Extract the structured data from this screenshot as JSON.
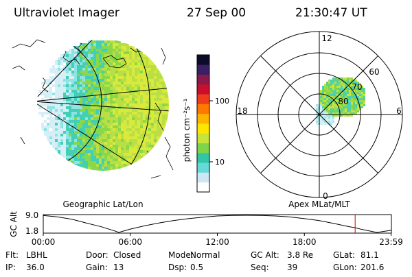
{
  "header": {
    "instrument": "Ultraviolet Imager",
    "date": "27 Sep 00",
    "time": "21:30:47 UT"
  },
  "panels": {
    "left_label": "Geographic Lat/Lon",
    "right_label": "Apex MLat/MLT"
  },
  "colorbar": {
    "label": "photon cm⁻²s⁻¹",
    "scale": "log",
    "colors": [
      "#ffffff",
      "#cfe6f3",
      "#66d9d9",
      "#31c7a6",
      "#7fd54a",
      "#c8e43a",
      "#ffe600",
      "#ffb400",
      "#ff7800",
      "#f03c1e",
      "#c8102e",
      "#8a1a4a",
      "#3b1f63",
      "#0c0c2a"
    ],
    "ticks": [
      {
        "label": "10",
        "value": 10
      },
      {
        "label": "100",
        "value": 100
      }
    ]
  },
  "polar_plot": {
    "mlt_labels": {
      "top": "12",
      "bottom": "0",
      "left": "18",
      "right": "6"
    },
    "mlat_labels": [
      "80",
      "70",
      "60"
    ]
  },
  "timeline": {
    "ylabel": "GC Alt",
    "ytick_top": "9.0",
    "ytick_bottom": "1.8",
    "xticks": [
      "00:00",
      "06:00",
      "12:00",
      "18:00",
      "23:59"
    ],
    "current_marker_color": "#cc0000"
  },
  "footer": {
    "row1": [
      {
        "label": "Flt:",
        "value": "LBHL"
      },
      {
        "label": "Door:",
        "value": "Closed"
      },
      {
        "label": "Mode:",
        "value": "Normal"
      },
      {
        "label": "GC Alt:",
        "value": "3.8 Re"
      },
      {
        "label": "GLat:",
        "value": "81.1"
      }
    ],
    "row2": [
      {
        "label": "IP:",
        "value": "36.0"
      },
      {
        "label": "Gain:",
        "value": "13"
      },
      {
        "label": "Dsp:",
        "value": "0.5"
      },
      {
        "label": "Seq:",
        "value": "39"
      },
      {
        "label": "GLon:",
        "value": "201.6"
      }
    ]
  },
  "chart_data": [
    {
      "type": "heatmap",
      "title": "Ultraviolet Imager",
      "projection": "Geographic Lat/Lon",
      "colorbar_label": "photon cm⁻²s⁻¹",
      "colorbar_scale": "log",
      "colorbar_ticks": [
        10,
        100
      ]
    },
    {
      "type": "heatmap",
      "projection": "Apex MLat/MLT",
      "mlt_ticks": [
        "12",
        "6",
        "0",
        "18"
      ],
      "mlat_rings": [
        80,
        70,
        60
      ]
    },
    {
      "type": "line",
      "ylabel": "GC Alt",
      "yticks": [
        1.8,
        9.0
      ],
      "ylim": [
        1.8,
        9.0
      ],
      "xticks": [
        "00:00",
        "06:00",
        "12:00",
        "18:00",
        "23:59"
      ],
      "x": [
        0,
        1,
        2,
        3,
        4,
        5,
        5.2,
        6,
        7,
        8,
        9,
        10,
        11,
        12,
        13,
        14,
        15,
        16,
        17,
        18,
        19,
        20,
        21,
        21.5,
        22,
        23,
        23.98
      ],
      "y": [
        8.9,
        8.3,
        7.3,
        5.7,
        4.2,
        2.3,
        1.8,
        3.2,
        4.6,
        5.8,
        6.8,
        7.6,
        8.2,
        8.7,
        8.95,
        9.0,
        8.95,
        8.7,
        8.3,
        7.6,
        6.8,
        5.6,
        4.3,
        3.8,
        3.0,
        1.8,
        2.7
      ],
      "marker_x": 21.5
    }
  ]
}
